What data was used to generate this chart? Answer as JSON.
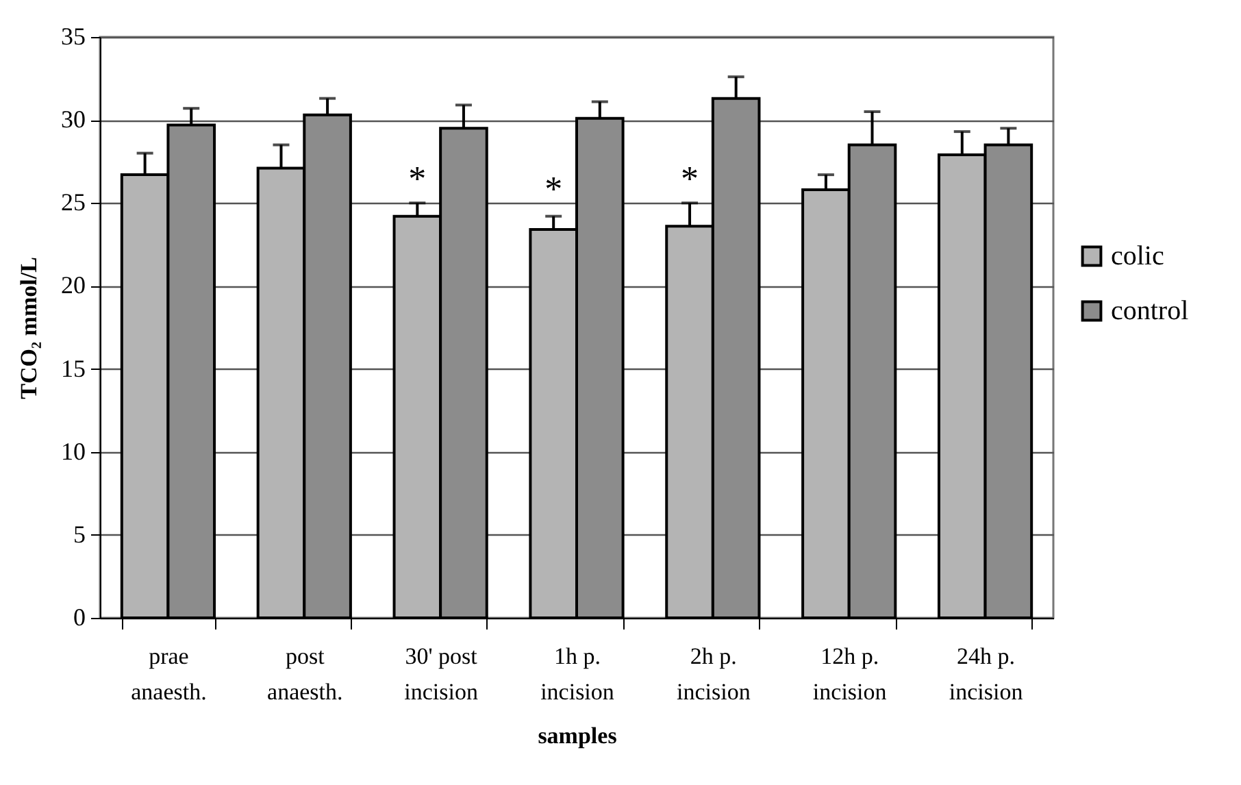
{
  "chart_data": {
    "type": "bar",
    "xlabel": "samples",
    "ylabel": "TCO₂ mmol/L",
    "categories": [
      "prae\nanaesth.",
      "post\nanaesth.",
      "30' post\nincision",
      "1h p.\nincision",
      "2h p.\nincision",
      "12h p.\nincision",
      "24h p.\nincision"
    ],
    "series": [
      {
        "name": "colic",
        "color": "#b4b4b4",
        "values": [
          26.7,
          27.1,
          24.2,
          23.4,
          23.6,
          25.8,
          27.9
        ],
        "errors": [
          1.3,
          1.4,
          0.8,
          0.8,
          1.4,
          0.9,
          1.4
        ]
      },
      {
        "name": "control",
        "color": "#8c8c8c",
        "values": [
          29.7,
          30.3,
          29.5,
          30.1,
          31.3,
          28.5,
          28.5
        ],
        "errors": [
          1.0,
          1.0,
          1.4,
          1.0,
          1.3,
          2.0,
          1.0
        ]
      }
    ],
    "ylim": [
      0,
      35
    ],
    "yticks": [
      0,
      5,
      10,
      15,
      20,
      25,
      30,
      35
    ],
    "grid": "y",
    "legend": "right",
    "annotations": [
      {
        "text": "*",
        "x": "30' post\nincision",
        "y": 26.9
      },
      {
        "text": "*",
        "x": "1h p.\nincision",
        "y": 26.3
      },
      {
        "text": "*",
        "x": "2h p.\nincision",
        "y": 26.9
      }
    ]
  }
}
